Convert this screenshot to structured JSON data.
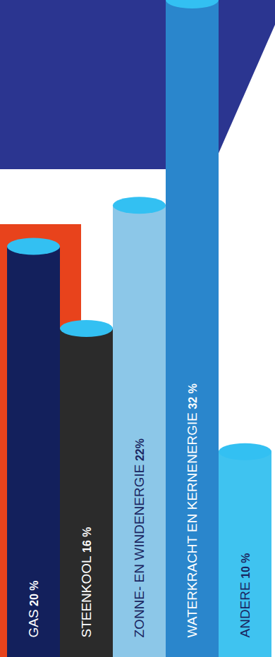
{
  "chart_data": {
    "type": "bar",
    "categories": [
      "GAS",
      "STEENKOOL",
      "ZONNE- EN WINDENERGIE",
      "WATERKRACHT EN KERNENERGIE",
      "ANDERE"
    ],
    "values": [
      20,
      16,
      22,
      32,
      10
    ],
    "value_labels": [
      "20 %",
      "16 %",
      "22%",
      "32 %",
      "10 %"
    ],
    "colors": [
      "#13205c",
      "#2b2b2b",
      "#8cc7e8",
      "#2a86cc",
      "#3fc3f0"
    ],
    "ylim": [
      0,
      32
    ],
    "data_labels": true,
    "tick_labels": false
  }
}
